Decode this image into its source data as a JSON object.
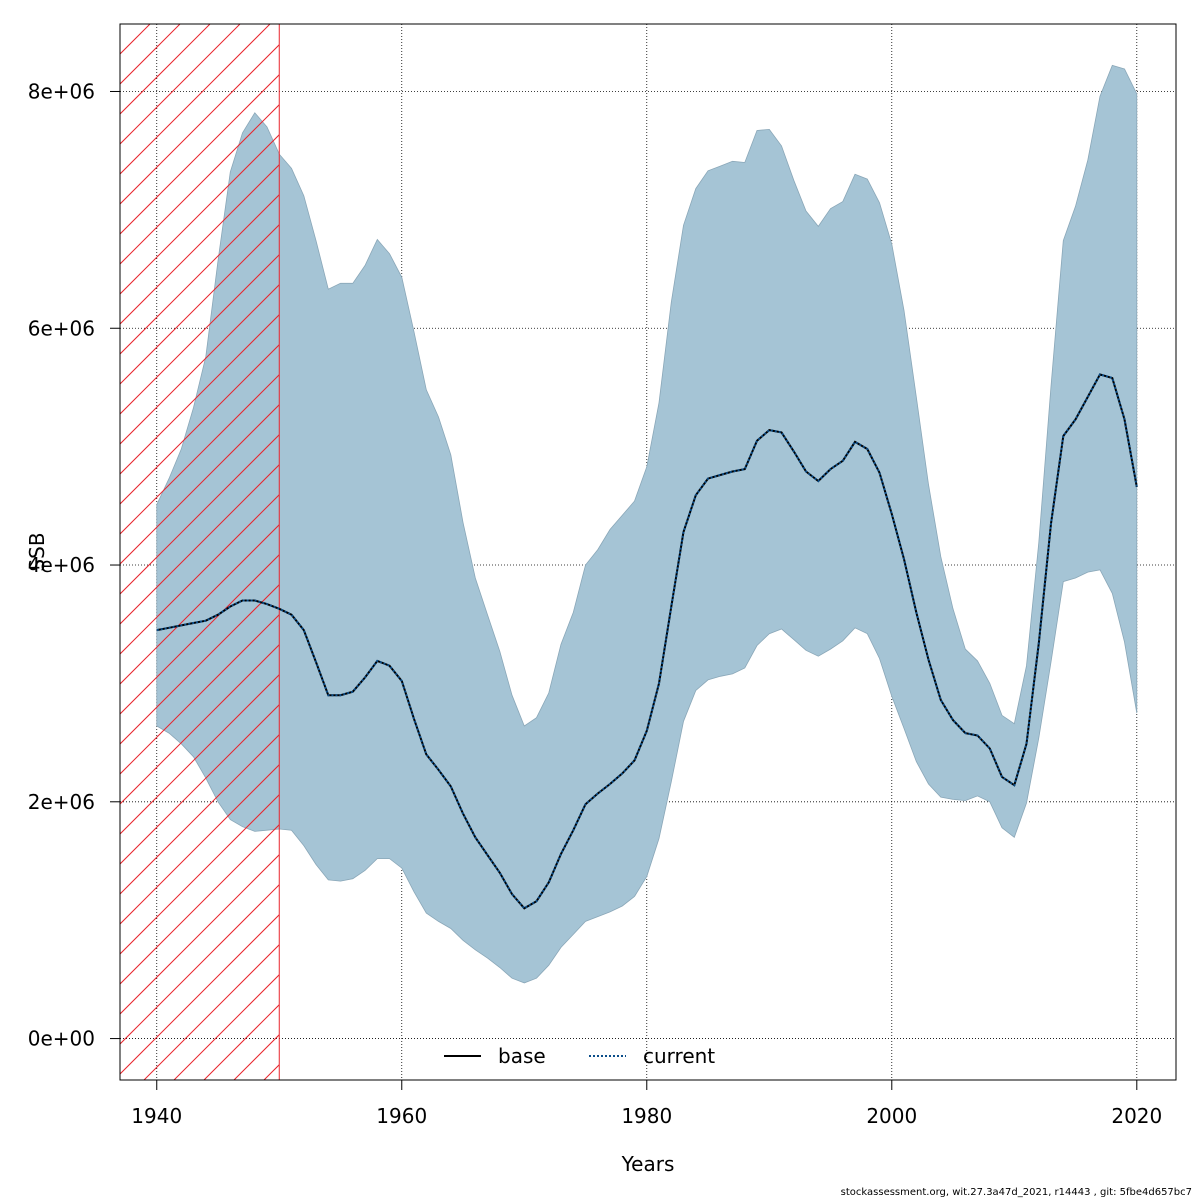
{
  "chart_data": {
    "type": "area",
    "xlabel": "Years",
    "ylabel": "SSB",
    "xlim": [
      1937,
      2023.2
    ],
    "ylim": [
      -350000,
      8570000
    ],
    "x_ticks": [
      1940,
      1960,
      1980,
      2000,
      2020
    ],
    "x_tick_labels": [
      "1940",
      "1960",
      "1980",
      "2000",
      "2020"
    ],
    "y_ticks": [
      0,
      2000000,
      4000000,
      6000000,
      8000000
    ],
    "y_tick_labels": [
      "0e+00",
      "2e+06",
      "4e+06",
      "6e+06",
      "8e+06"
    ],
    "grid": true,
    "hatched_period": [
      1937,
      1950
    ],
    "colors": {
      "band": "#a5c4d5",
      "hatch": "#e8242c",
      "current": "#0b4e8a",
      "base": "#000000"
    },
    "x": [
      1940,
      1941,
      1942,
      1943,
      1944,
      1945,
      1946,
      1947,
      1948,
      1949,
      1950,
      1951,
      1952,
      1953,
      1954,
      1955,
      1956,
      1957,
      1958,
      1959,
      1960,
      1961,
      1962,
      1963,
      1964,
      1965,
      1966,
      1967,
      1968,
      1969,
      1970,
      1971,
      1972,
      1973,
      1974,
      1975,
      1976,
      1977,
      1978,
      1979,
      1980,
      1981,
      1982,
      1983,
      1984,
      1985,
      1986,
      1987,
      1988,
      1989,
      1990,
      1991,
      1992,
      1993,
      1994,
      1995,
      1996,
      1997,
      1998,
      1999,
      2000,
      2001,
      2002,
      2003,
      2004,
      2005,
      2006,
      2007,
      2008,
      2009,
      2010,
      2011,
      2012,
      2013,
      2014,
      2015,
      2016,
      2017,
      2018,
      2019,
      2020
    ],
    "series": [
      {
        "name": "base",
        "style": "solid",
        "values": [
          3450000,
          3470000,
          3490000,
          3510000,
          3530000,
          3580000,
          3650000,
          3700000,
          3700000,
          3670000,
          3630000,
          3580000,
          3450000,
          3180000,
          2900000,
          2900000,
          2930000,
          3050000,
          3190000,
          3150000,
          3020000,
          2700000,
          2400000,
          2270000,
          2130000,
          1900000,
          1700000,
          1550000,
          1400000,
          1220000,
          1100000,
          1160000,
          1320000,
          1560000,
          1760000,
          1980000,
          2070000,
          2150000,
          2240000,
          2350000,
          2600000,
          3000000,
          3650000,
          4280000,
          4590000,
          4730000,
          4760000,
          4790000,
          4810000,
          5050000,
          5140000,
          5120000,
          4960000,
          4790000,
          4710000,
          4810000,
          4880000,
          5040000,
          4980000,
          4780000,
          4430000,
          4050000,
          3600000,
          3200000,
          2860000,
          2690000,
          2580000,
          2560000,
          2450000,
          2210000,
          2140000,
          2490000,
          3340000,
          4350000,
          5090000,
          5230000,
          5420000,
          5610000,
          5580000,
          5230000,
          4660000
        ]
      },
      {
        "name": "current",
        "style": "dotted",
        "values": [
          3450000,
          3470000,
          3490000,
          3510000,
          3530000,
          3580000,
          3650000,
          3700000,
          3700000,
          3670000,
          3630000,
          3580000,
          3450000,
          3180000,
          2900000,
          2900000,
          2930000,
          3050000,
          3190000,
          3150000,
          3020000,
          2700000,
          2400000,
          2270000,
          2130000,
          1900000,
          1700000,
          1550000,
          1400000,
          1220000,
          1100000,
          1160000,
          1320000,
          1560000,
          1760000,
          1980000,
          2070000,
          2150000,
          2240000,
          2350000,
          2600000,
          3000000,
          3650000,
          4280000,
          4590000,
          4730000,
          4760000,
          4790000,
          4810000,
          5050000,
          5140000,
          5120000,
          4960000,
          4790000,
          4710000,
          4810000,
          4880000,
          5040000,
          4980000,
          4780000,
          4430000,
          4050000,
          3600000,
          3200000,
          2860000,
          2690000,
          2580000,
          2560000,
          2450000,
          2210000,
          2140000,
          2490000,
          3340000,
          4350000,
          5090000,
          5230000,
          5420000,
          5610000,
          5580000,
          5230000,
          4660000
        ]
      }
    ],
    "band": {
      "upper": [
        4510000,
        4730000,
        4980000,
        5330000,
        5760000,
        6570000,
        7320000,
        7650000,
        7820000,
        7700000,
        7470000,
        7350000,
        7120000,
        6740000,
        6330000,
        6380000,
        6380000,
        6530000,
        6750000,
        6630000,
        6430000,
        5970000,
        5480000,
        5250000,
        4930000,
        4360000,
        3890000,
        3580000,
        3270000,
        2900000,
        2640000,
        2710000,
        2920000,
        3330000,
        3600000,
        4000000,
        4130000,
        4300000,
        4420000,
        4540000,
        4830000,
        5370000,
        6220000,
        6870000,
        7180000,
        7330000,
        7370000,
        7410000,
        7400000,
        7670000,
        7680000,
        7540000,
        7250000,
        6990000,
        6860000,
        7010000,
        7070000,
        7300000,
        7260000,
        7060000,
        6710000,
        6150000,
        5420000,
        4680000,
        4070000,
        3630000,
        3290000,
        3190000,
        3000000,
        2730000,
        2660000,
        3150000,
        4190000,
        5510000,
        6740000,
        7030000,
        7420000,
        7960000,
        8220000,
        8190000,
        7980000
      ],
      "lower": [
        2640000,
        2580000,
        2490000,
        2380000,
        2200000,
        2000000,
        1850000,
        1790000,
        1750000,
        1760000,
        1770000,
        1760000,
        1630000,
        1470000,
        1340000,
        1330000,
        1350000,
        1420000,
        1520000,
        1520000,
        1440000,
        1240000,
        1060000,
        990000,
        930000,
        830000,
        750000,
        680000,
        600000,
        510000,
        470000,
        510000,
        620000,
        770000,
        880000,
        990000,
        1030000,
        1070000,
        1120000,
        1200000,
        1370000,
        1690000,
        2170000,
        2680000,
        2940000,
        3030000,
        3060000,
        3080000,
        3130000,
        3320000,
        3420000,
        3460000,
        3370000,
        3280000,
        3230000,
        3290000,
        3360000,
        3470000,
        3420000,
        3210000,
        2890000,
        2620000,
        2340000,
        2150000,
        2040000,
        2020000,
        2010000,
        2050000,
        2000000,
        1780000,
        1700000,
        1990000,
        2540000,
        3180000,
        3860000,
        3890000,
        3940000,
        3960000,
        3760000,
        3350000,
        2750000
      ]
    },
    "legend": {
      "placement": "bottom-center",
      "entries": [
        "base",
        "current"
      ]
    }
  },
  "footer": "stockassessment.org, wit.27.3a47d_2021, r14443 , git: 5fbe4d657bc7"
}
